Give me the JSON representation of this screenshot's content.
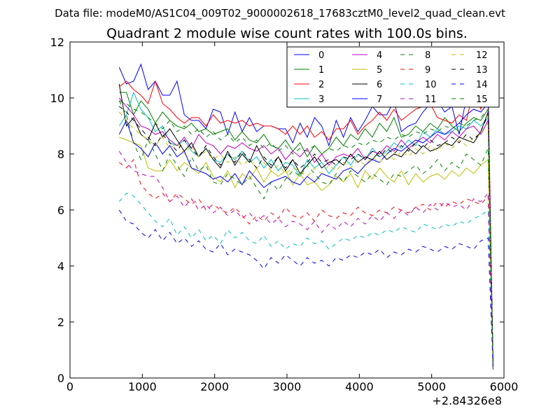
{
  "chart_data": {
    "type": "line",
    "suptitle": "Data file: modeM0/AS1C04_009T02_9000002618_17683cztM0_level2_quad_clean.evt",
    "title": "Quadrant 2 module wise count rates with 100.0s bins.",
    "xlabel": "",
    "ylabel": "",
    "x_offset_label": "+2.84326e8",
    "xlim": [
      0,
      6000
    ],
    "ylim": [
      0,
      12
    ],
    "xticks": [
      0,
      1000,
      2000,
      3000,
      4000,
      5000,
      6000
    ],
    "yticks": [
      0,
      2,
      4,
      6,
      8,
      10,
      12
    ],
    "grid": false,
    "legend_position": "top-right",
    "x": [
      680,
      780,
      880,
      980,
      1080,
      1180,
      1280,
      1380,
      1480,
      1580,
      1680,
      1780,
      1880,
      1980,
      2080,
      2180,
      2280,
      2380,
      2480,
      2580,
      2680,
      2780,
      2880,
      2980,
      3080,
      3180,
      3280,
      3380,
      3480,
      3580,
      3680,
      3780,
      3880,
      3980,
      4080,
      4180,
      4280,
      4380,
      4480,
      4580,
      4680,
      4780,
      4880,
      4980,
      5080,
      5180,
      5280,
      5380,
      5480,
      5580,
      5680,
      5780,
      5850
    ],
    "series": [
      {
        "name": "0",
        "color": "#0000ff",
        "dash": "solid",
        "values": [
          11.1,
          10.5,
          10.6,
          11.2,
          10.3,
          10.6,
          10.1,
          10.1,
          10.6,
          9.4,
          9.2,
          9.2,
          8.9,
          9.6,
          9.5,
          8.7,
          9.5,
          8.8,
          9.3,
          8.8,
          9.0,
          9.0,
          8.9,
          8.9,
          8.4,
          9.1,
          8.6,
          9.3,
          9.0,
          8.3,
          9.2,
          8.6,
          9.3,
          8.8,
          9.2,
          9.7,
          9.4,
          9.4,
          9.9,
          8.8,
          9.0,
          9.1,
          9.5,
          9.8,
          9.9,
          9.5,
          9.7,
          8.7,
          10.0,
          9.9,
          9.7,
          9.9,
          0.3
        ]
      },
      {
        "name": "1",
        "color": "#008000",
        "dash": "solid",
        "values": [
          10.2,
          10.2,
          9.4,
          9.9,
          9.6,
          9.1,
          9.5,
          9.2,
          9.0,
          8.9,
          9.1,
          8.8,
          8.9,
          8.7,
          8.8,
          8.9,
          8.5,
          8.8,
          8.5,
          8.4,
          8.7,
          8.3,
          8.2,
          8.5,
          8.1,
          8.4,
          7.9,
          8.3,
          8.0,
          8.2,
          8.6,
          8.3,
          8.7,
          8.5,
          8.9,
          8.6,
          9.1,
          8.8,
          9.3,
          8.6,
          8.7,
          9.0,
          8.8,
          9.1,
          8.9,
          9.3,
          9.0,
          8.8,
          9.1,
          9.3,
          9.2,
          9.6,
          0.4
        ]
      },
      {
        "name": "2",
        "color": "#ff0000",
        "dash": "solid",
        "values": [
          10.4,
          10.6,
          10.3,
          10.1,
          9.8,
          10.6,
          9.8,
          9.6,
          9.3,
          9.1,
          9.3,
          9.3,
          9.0,
          9.4,
          9.1,
          9.2,
          9.1,
          9.2,
          9.0,
          9.1,
          9.0,
          9.0,
          8.9,
          8.7,
          9.0,
          8.7,
          9.0,
          8.6,
          8.8,
          8.5,
          8.9,
          8.9,
          9.2,
          8.7,
          9.0,
          9.2,
          9.5,
          9.2,
          9.6,
          9.2,
          9.4,
          9.6,
          9.7,
          9.8,
          9.3,
          9.2,
          9.1,
          9.4,
          9.2,
          10.3,
          9.6,
          10.5,
          0.3
        ]
      },
      {
        "name": "3",
        "color": "#00bfbf",
        "dash": "solid",
        "values": [
          9.0,
          9.4,
          10.2,
          9.6,
          9.3,
          8.8,
          9.0,
          8.4,
          8.3,
          8.5,
          8.1,
          7.9,
          8.2,
          7.8,
          7.7,
          8.0,
          7.8,
          8.1,
          7.7,
          7.9,
          7.5,
          7.8,
          7.4,
          7.7,
          7.6,
          7.2,
          7.8,
          7.5,
          7.7,
          7.3,
          7.6,
          7.9,
          7.6,
          8.0,
          7.8,
          8.2,
          7.9,
          8.1,
          8.4,
          8.2,
          8.5,
          8.3,
          8.8,
          8.6,
          8.9,
          8.7,
          8.8,
          9.0,
          8.9,
          9.2,
          9.0,
          9.3,
          0.4
        ]
      },
      {
        "name": "4",
        "color": "#bf00bf",
        "dash": "solid",
        "values": [
          10.0,
          9.7,
          9.4,
          9.0,
          8.9,
          8.7,
          8.8,
          8.5,
          8.3,
          8.6,
          8.2,
          8.7,
          8.4,
          8.3,
          8.0,
          8.3,
          8.2,
          8.4,
          8.2,
          8.1,
          8.3,
          8.0,
          8.2,
          7.8,
          8.1,
          7.9,
          8.2,
          7.7,
          8.0,
          7.6,
          7.9,
          8.0,
          7.9,
          8.2,
          7.8,
          8.1,
          8.0,
          8.3,
          8.1,
          8.5,
          8.2,
          8.4,
          8.6,
          8.4,
          8.7,
          8.5,
          8.8,
          8.6,
          8.9,
          9.0,
          8.7,
          9.2,
          0.3
        ]
      },
      {
        "name": "5",
        "color": "#bfbf00",
        "dash": "solid",
        "values": [
          8.6,
          8.5,
          8.4,
          8.3,
          7.5,
          7.4,
          7.4,
          7.8,
          7.4,
          7.7,
          7.5,
          7.3,
          7.7,
          7.2,
          7.0,
          7.4,
          6.8,
          7.3,
          7.1,
          7.5,
          7.0,
          7.4,
          7.2,
          7.4,
          6.9,
          7.3,
          6.9,
          7.0,
          6.7,
          6.9,
          7.2,
          7.0,
          7.3,
          6.8,
          7.4,
          7.1,
          7.5,
          7.2,
          7.0,
          7.4,
          6.9,
          7.3,
          7.0,
          7.2,
          7.3,
          7.1,
          7.4,
          7.2,
          7.5,
          7.3,
          7.6,
          7.8,
          0.5
        ]
      },
      {
        "name": "6",
        "color": "#000000",
        "dash": "solid",
        "values": [
          10.5,
          9.0,
          9.3,
          8.7,
          8.5,
          9.1,
          8.6,
          8.9,
          8.5,
          8.1,
          8.4,
          7.9,
          8.2,
          7.8,
          7.5,
          8.1,
          7.6,
          8.0,
          7.7,
          8.3,
          7.8,
          7.5,
          7.9,
          7.4,
          7.8,
          7.3,
          7.6,
          7.9,
          7.5,
          7.7,
          7.8,
          7.6,
          8.0,
          7.7,
          7.9,
          7.8,
          8.1,
          7.8,
          8.0,
          7.9,
          8.2,
          8.0,
          8.3,
          8.1,
          8.2,
          8.4,
          8.3,
          8.6,
          8.5,
          8.4,
          8.8,
          9.5,
          0.4
        ]
      },
      {
        "name": "7",
        "color": "#0000ff",
        "dash": "solid",
        "values": [
          8.7,
          9.2,
          8.4,
          8.2,
          7.9,
          8.4,
          8.0,
          8.3,
          7.9,
          8.1,
          7.5,
          7.4,
          7.3,
          7.1,
          7.2,
          7.0,
          7.3,
          6.9,
          7.4,
          7.1,
          6.8,
          7.0,
          7.1,
          7.2,
          7.0,
          6.9,
          7.2,
          7.0,
          7.3,
          7.2,
          7.1,
          7.4,
          7.5,
          7.3,
          7.6,
          7.8,
          7.7,
          8.0,
          8.2,
          8.1,
          8.3,
          8.5,
          8.4,
          8.6,
          8.8,
          8.7,
          8.9,
          9.1,
          9.4,
          9.6,
          9.5,
          9.8,
          0.3
        ]
      },
      {
        "name": "8",
        "color": "#008000",
        "dash": "dashed",
        "values": [
          9.9,
          9.4,
          8.4,
          7.8,
          8.5,
          8.0,
          7.4,
          8.0,
          7.6,
          7.2,
          7.9,
          7.4,
          7.6,
          7.0,
          6.9,
          7.3,
          7.1,
          6.9,
          7.2,
          6.8,
          6.4,
          7.0,
          6.7,
          7.1,
          7.4,
          7.2,
          7.6,
          7.3,
          7.0,
          6.9,
          7.3,
          7.0,
          7.4,
          7.2,
          7.0,
          7.3,
          7.1,
          6.9,
          7.3,
          7.2,
          7.4,
          7.6,
          7.3,
          7.5,
          7.8,
          7.4,
          7.7,
          7.5,
          8.0,
          7.8,
          7.6,
          8.2,
          0.4
        ]
      },
      {
        "name": "9",
        "color": "#ff0000",
        "dash": "dashed",
        "values": [
          7.7,
          7.5,
          7.8,
          6.9,
          6.6,
          6.4,
          6.6,
          6.3,
          6.6,
          6.4,
          6.2,
          6.4,
          6.0,
          6.2,
          6.0,
          5.9,
          6.1,
          5.8,
          5.5,
          5.8,
          5.6,
          5.9,
          5.7,
          6.1,
          5.8,
          5.7,
          5.9,
          5.6,
          6.0,
          5.8,
          5.7,
          5.9,
          5.8,
          6.1,
          5.9,
          5.8,
          6.0,
          5.9,
          6.1,
          6.0,
          5.9,
          6.1,
          6.2,
          6.0,
          6.3,
          6.1,
          6.3,
          6.2,
          6.4,
          6.3,
          6.2,
          6.5,
          0.5
        ]
      },
      {
        "name": "10",
        "color": "#00bfbf",
        "dash": "dashed",
        "values": [
          6.3,
          6.6,
          6.5,
          6.2,
          5.9,
          5.6,
          5.4,
          5.7,
          5.1,
          5.4,
          5.0,
          5.3,
          4.9,
          5.1,
          4.8,
          5.3,
          5.0,
          5.2,
          4.9,
          4.8,
          5.1,
          4.7,
          4.9,
          4.6,
          4.8,
          4.7,
          5.0,
          4.8,
          4.9,
          4.6,
          4.8,
          5.0,
          4.9,
          5.1,
          5.0,
          5.2,
          5.1,
          5.3,
          5.2,
          5.4,
          5.3,
          5.2,
          5.5,
          5.4,
          5.3,
          5.5,
          5.4,
          5.6,
          5.5,
          5.7,
          5.8,
          6.0,
          0.4
        ]
      },
      {
        "name": "11",
        "color": "#bf00bf",
        "dash": "dashed",
        "values": [
          8.1,
          7.7,
          7.4,
          7.3,
          7.2,
          7.2,
          6.8,
          6.3,
          6.5,
          6.1,
          6.4,
          6.0,
          6.2,
          5.9,
          6.1,
          5.8,
          6.0,
          5.7,
          5.9,
          5.6,
          5.8,
          5.5,
          5.7,
          5.4,
          5.6,
          5.5,
          5.3,
          5.6,
          5.2,
          5.5,
          5.3,
          5.6,
          5.4,
          5.7,
          5.5,
          5.8,
          5.6,
          5.9,
          5.7,
          6.0,
          5.8,
          6.1,
          5.9,
          6.2,
          6.0,
          6.3,
          6.1,
          6.2,
          6.0,
          6.4,
          6.3,
          6.6,
          0.3
        ]
      },
      {
        "name": "12",
        "color": "#bfbf00",
        "dash": "dashed",
        "values": [
          9.5,
          9.2,
          8.9,
          8.7,
          8.5,
          8.3,
          8.6,
          8.2,
          8.4,
          8.0,
          8.3,
          7.9,
          8.1,
          7.8,
          8.0,
          7.7,
          7.9,
          7.6,
          7.8,
          7.5,
          7.7,
          7.4,
          7.6,
          7.3,
          7.5,
          7.4,
          7.2,
          7.5,
          7.3,
          7.6,
          7.4,
          7.7,
          7.5,
          7.8,
          7.6,
          7.9,
          7.7,
          8.0,
          7.8,
          8.1,
          7.9,
          8.2,
          8.0,
          8.3,
          8.1,
          8.4,
          8.2,
          8.5,
          8.3,
          8.6,
          8.7,
          9.1,
          0.3
        ]
      },
      {
        "name": "13",
        "color": "#000000",
        "dash": "dashed",
        "values": [
          9.7,
          9.5,
          9.2,
          8.9,
          8.6,
          8.3,
          8.7,
          8.4,
          8.1,
          8.5,
          8.2,
          7.9,
          8.3,
          7.9,
          7.6,
          8.0,
          7.7,
          8.1,
          7.8,
          7.5,
          7.9,
          7.6,
          7.9,
          7.5,
          7.8,
          7.5,
          7.7,
          8.0,
          7.7,
          7.8,
          7.6,
          7.9,
          7.8,
          8.0,
          7.8,
          8.1,
          7.9,
          8.2,
          8.0,
          8.3,
          8.1,
          8.4,
          8.2,
          8.5,
          8.3,
          8.4,
          8.6,
          8.4,
          8.7,
          8.5,
          8.8,
          9.4,
          0.4
        ]
      },
      {
        "name": "14",
        "color": "#0000ff",
        "dash": "dashed",
        "values": [
          6.0,
          5.6,
          5.5,
          5.2,
          5.0,
          5.3,
          4.9,
          5.2,
          4.8,
          5.0,
          4.7,
          4.9,
          4.6,
          4.5,
          4.8,
          4.4,
          4.6,
          4.5,
          4.4,
          4.2,
          3.9,
          4.3,
          4.1,
          4.4,
          4.2,
          4.0,
          4.3,
          4.1,
          4.2,
          4.0,
          4.3,
          4.2,
          4.4,
          4.3,
          4.5,
          4.4,
          4.6,
          4.3,
          4.5,
          4.4,
          4.6,
          4.5,
          4.7,
          4.6,
          4.5,
          4.7,
          4.6,
          4.8,
          4.7,
          4.6,
          4.9,
          5.0,
          0.3
        ]
      },
      {
        "name": "15",
        "color": "#008000",
        "dash": "dashed",
        "values": [
          9.9,
          9.8,
          9.6,
          9.5,
          9.3,
          9.1,
          8.9,
          9.2,
          8.8,
          9.0,
          8.7,
          8.9,
          8.6,
          8.8,
          8.5,
          8.7,
          8.4,
          8.6,
          8.3,
          8.5,
          8.2,
          8.4,
          8.1,
          8.3,
          8.0,
          8.2,
          8.1,
          8.3,
          8.0,
          8.2,
          8.1,
          8.3,
          8.2,
          8.4,
          8.3,
          8.5,
          8.4,
          8.6,
          8.5,
          8.7,
          8.6,
          8.8,
          8.7,
          8.9,
          8.8,
          9.0,
          8.9,
          9.1,
          9.0,
          9.2,
          9.3,
          9.6,
          0.3
        ]
      }
    ]
  }
}
